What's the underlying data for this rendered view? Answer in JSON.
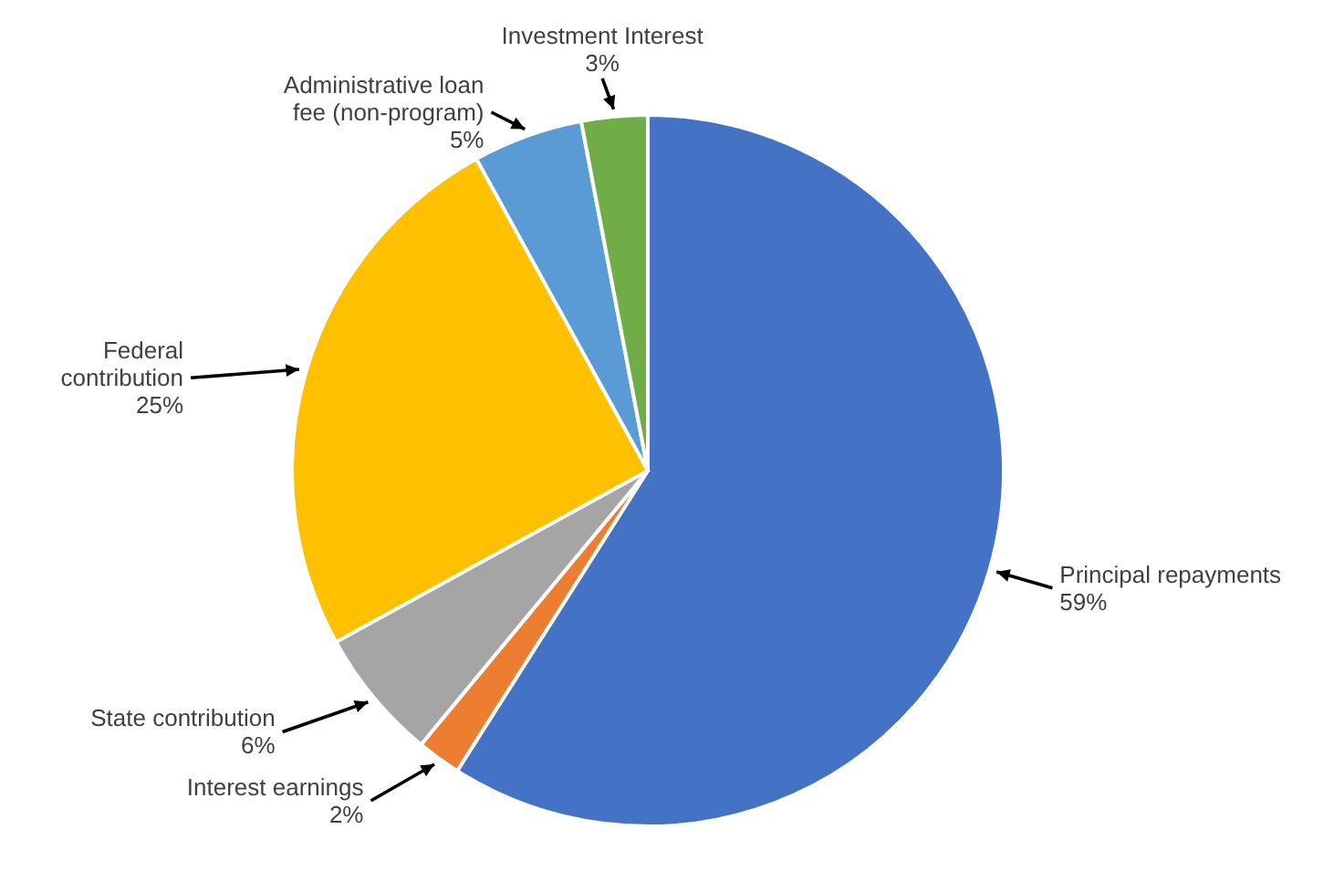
{
  "chart_data": {
    "type": "pie",
    "categories": [
      "Principal repayments",
      "Interest earnings",
      "State contribution",
      "Federal contribution",
      "Administrative loan fee (non-program)",
      "Investment Interest"
    ],
    "values": [
      59,
      2,
      6,
      25,
      5,
      3
    ],
    "colors": [
      "#4472c4",
      "#ed7d31",
      "#a5a5a5",
      "#ffc000",
      "#5b9bd5",
      "#70ad47"
    ],
    "value_labels": [
      "59%",
      "2%",
      "6%",
      "25%",
      "5%",
      "3%"
    ]
  }
}
